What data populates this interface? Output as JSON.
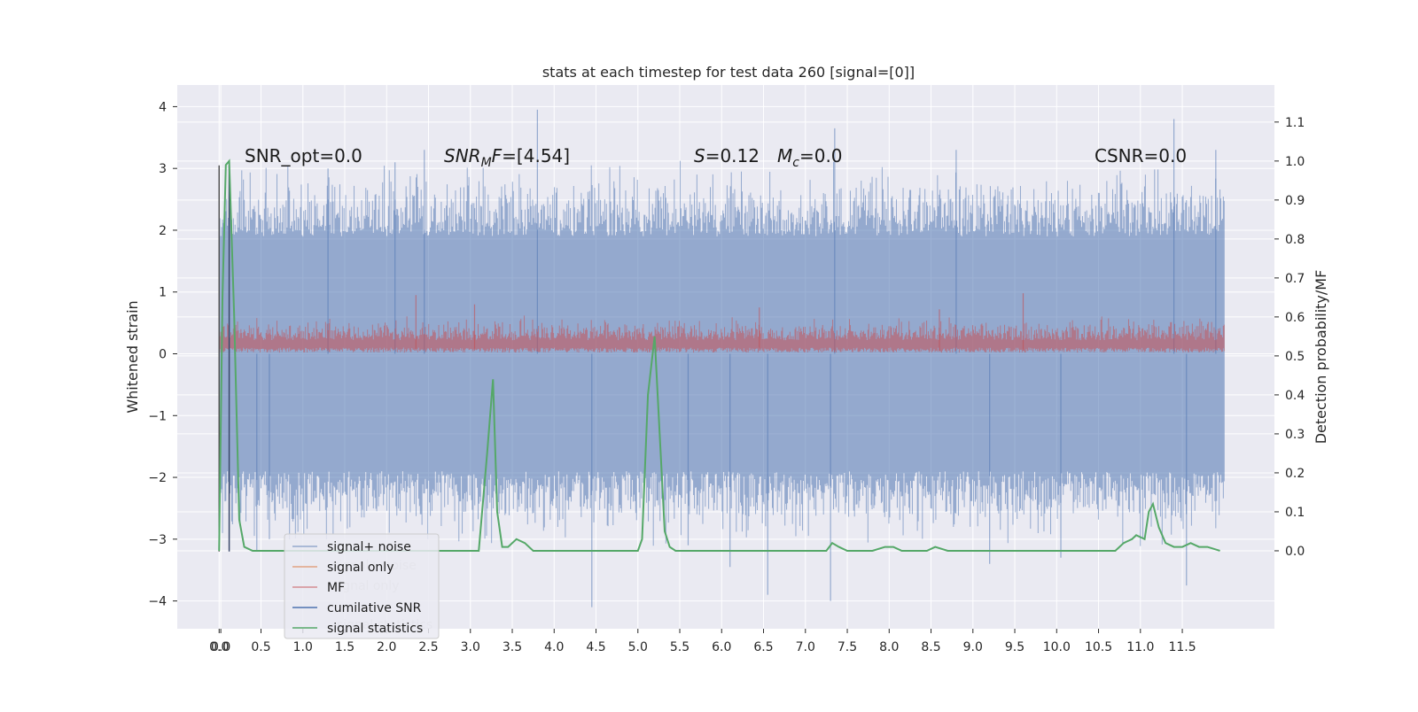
{
  "chart_data": {
    "type": "line",
    "title": "stats at each timestep for test data 260 [signal=[0]]",
    "xlabel": "",
    "ylabel": "Whitened strain",
    "y2label": "Detection probability/MF",
    "xlim": [
      -0.5,
      12.6
    ],
    "ylim": [
      -4.45,
      4.35
    ],
    "y2lim": [
      -0.2,
      1.195
    ],
    "x_ticks": [
      "0.0",
      "0.0",
      "0.5",
      "1.0",
      "1.5",
      "2.0",
      "2.5",
      "3.0",
      "3.5",
      "4.0",
      "4.5",
      "5.0",
      "5.5",
      "6.0",
      "6.5",
      "7.0",
      "7.5",
      "8.0",
      "8.5",
      "9.0",
      "9.5",
      "10.0",
      "10.5",
      "11.0",
      "11.5"
    ],
    "y_ticks": [
      4,
      3,
      2,
      1,
      0,
      -1,
      -2,
      -3,
      -4
    ],
    "y_tick_labels": [
      "4",
      "3",
      "2",
      "1",
      "0",
      "−1",
      "−2",
      "−3",
      "−4"
    ],
    "y2_ticks": [
      1.1,
      1.0,
      0.9,
      0.8,
      0.7,
      0.6,
      0.5,
      0.4,
      0.3,
      0.2,
      0.1,
      0.0
    ],
    "y2_tick_labels": [
      "1.1",
      "1.0",
      "0.9",
      "0.8",
      "0.7",
      "0.6",
      "0.5",
      "0.4",
      "0.3",
      "0.2",
      "0.1",
      "0.0"
    ],
    "grid": true,
    "legend_placement": "lower-left",
    "annotations": {
      "snr_opt": "SNR_opt=0.0",
      "snr_mf_var": "SNR",
      "snr_mf_sub": "M",
      "snr_mf_var2": "F",
      "snr_mf_val": "=[4.54]",
      "s_var": "S",
      "s_val": "=0.12",
      "mc_var": "M",
      "mc_sub": "c",
      "mc_val": "=0.0",
      "csnr": "CSNR=0.0"
    },
    "series": [
      {
        "name": "signal+ noise",
        "color": "#4c72b0",
        "x_range": [
          0.0,
          12.0
        ],
        "envelope": {
          "typical": 2.5,
          "peak": 3.95,
          "trough": -4.1
        }
      },
      {
        "name": "signal only",
        "color": "#dd8452",
        "values": [
          0
        ]
      },
      {
        "name": "MF",
        "color": "#c44e52",
        "x_range": [
          0.0,
          12.0
        ],
        "envelope": {
          "low": 0.0,
          "typical_high": 0.55,
          "peak": 0.98
        }
      },
      {
        "name": "cumilative SNR",
        "color": "#4c72b0"
      },
      {
        "name": "signal statistics",
        "color": "#55a868",
        "x": [
          0.0,
          0.04,
          0.08,
          0.12,
          0.18,
          0.24,
          0.3,
          0.4,
          0.6,
          1.0,
          2.0,
          2.9,
          3.1,
          3.2,
          3.27,
          3.32,
          3.38,
          3.45,
          3.55,
          3.65,
          3.75,
          3.9,
          4.5,
          4.9,
          5.0,
          5.05,
          5.12,
          5.2,
          5.26,
          5.32,
          5.38,
          5.45,
          5.55,
          6.0,
          7.0,
          7.25,
          7.32,
          7.4,
          7.5,
          7.8,
          7.95,
          8.05,
          8.15,
          8.3,
          8.45,
          8.55,
          8.7,
          8.9,
          9.2,
          9.4,
          9.6,
          10.0,
          10.6,
          10.7,
          10.8,
          10.9,
          10.95,
          11.05,
          11.1,
          11.15,
          11.22,
          11.3,
          11.4,
          11.5,
          11.6,
          11.7,
          11.8,
          11.95
        ],
        "y": [
          0.0,
          0.65,
          0.99,
          1.0,
          0.6,
          0.08,
          0.01,
          0.0,
          0.0,
          0.0,
          0.0,
          0.0,
          0.0,
          0.25,
          0.44,
          0.1,
          0.01,
          0.01,
          0.03,
          0.02,
          0.0,
          0.0,
          0.0,
          0.0,
          0.0,
          0.03,
          0.4,
          0.55,
          0.3,
          0.05,
          0.01,
          0.0,
          0.0,
          0.0,
          0.0,
          0.0,
          0.02,
          0.01,
          0.0,
          0.0,
          0.01,
          0.01,
          0.0,
          0.0,
          0.0,
          0.01,
          0.0,
          0.0,
          0.0,
          0.0,
          0.0,
          0.0,
          0.0,
          0.0,
          0.02,
          0.03,
          0.04,
          0.03,
          0.1,
          0.12,
          0.06,
          0.02,
          0.01,
          0.01,
          0.02,
          0.01,
          0.01,
          0.0
        ]
      }
    ],
    "vertical_markers": [
      {
        "x": 0.0,
        "y_top": 3.05,
        "y_bottom": -3.2,
        "color": "#555555"
      },
      {
        "x": 0.12,
        "y_top": 3.05,
        "y_bottom": -3.2,
        "color": "#3b4a6b"
      }
    ]
  }
}
